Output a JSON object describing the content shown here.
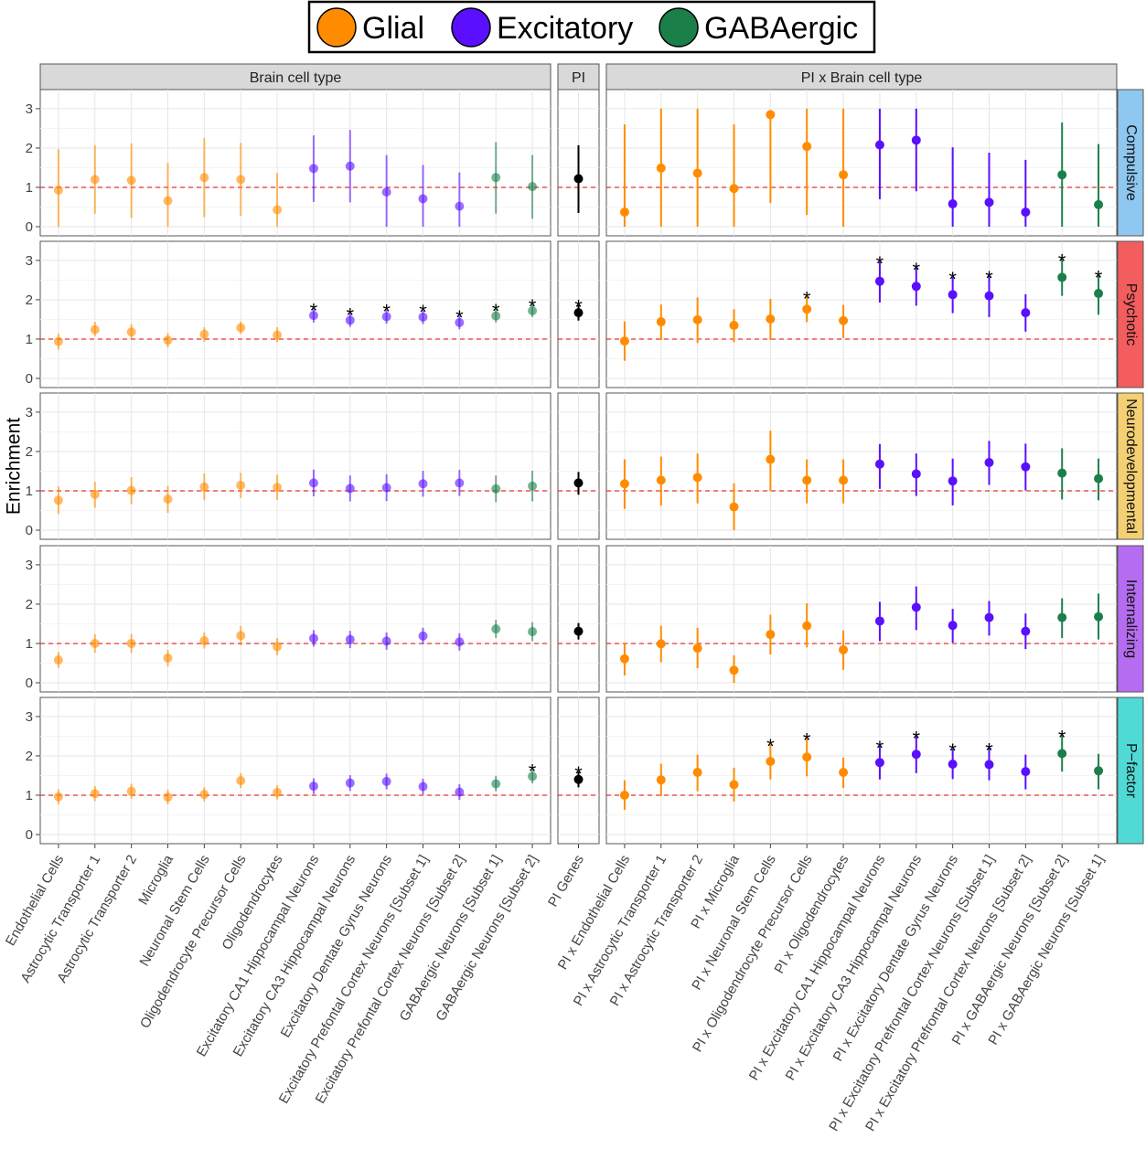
{
  "legend": {
    "items": [
      {
        "label": "Glial",
        "color": "#ff8c00"
      },
      {
        "label": "Excitatory",
        "color": "#5a0fff"
      },
      {
        "label": "GABAergic",
        "color": "#1b7f4a"
      }
    ]
  },
  "chart_data": {
    "type": "scatter",
    "ylabel": "Enrichment",
    "ylim": [
      0,
      3.3
    ],
    "yticks": [
      0,
      1,
      2,
      3
    ],
    "reference_line": 1,
    "grid": true,
    "column_facets": [
      {
        "label": "Brain cell type",
        "faded": true,
        "categories": [
          "Endothelial Cells",
          "Astrocytic Transporter 1",
          "Astrocytic Transporter 2",
          "Microglia",
          "Neuronal Stem Cells",
          "Oligodendrocyte Precursor Cells",
          "Oligodendrocytes",
          "Excitatory CA1 Hippocampal Neurons",
          "Excitatory CA3 Hippocampal Neurons",
          "Excitatory Dentate Gyrus Neurons",
          "Excitatory Prefontal Cortex Neurons [Subset 1]",
          "Excitatory Prefontal Cortex Neurons [Subset 2]",
          "GABAergic Neurons [Subset 1]",
          "GABAergic Neurons [Subset 2]"
        ],
        "groups": [
          "Glial",
          "Glial",
          "Glial",
          "Glial",
          "Glial",
          "Glial",
          "Glial",
          "Excitatory",
          "Excitatory",
          "Excitatory",
          "Excitatory",
          "Excitatory",
          "GABAergic",
          "GABAergic"
        ]
      },
      {
        "label": "PI",
        "faded": false,
        "categories": [
          "PI Genes"
        ],
        "groups": [
          "PI"
        ]
      },
      {
        "label": "PI x Brain cell type",
        "faded": false,
        "categories": [
          "PI x Endothelial Cells",
          "PI x Astrocytic Transporter 1",
          "PI x Astrocytic Transporter 2",
          "PI x Microglia",
          "PI x Neuronal Stem Cells",
          "PI x Oligodendrocyte Precursor Cells",
          "PI x Oligodendrocytes",
          "PI x Excitatory CA1 Hippocampal Neurons",
          "PI x Excitatory CA3 Hippocampal Neurons",
          "PI x Excitatory Dentate Gyrus Neurons",
          "PI x Excitatory Prefrontal Cortex Neurons [Subset 1]",
          "PI x Excitatory Prefrontal Cortex Neurons [Subset 2]",
          "PI x GABAergic Neurons [Subset 2]",
          "PI x GABAergic Neurons [Subset 1]"
        ],
        "groups": [
          "Glial",
          "Glial",
          "Glial",
          "Glial",
          "Glial",
          "Glial",
          "Glial",
          "Excitatory",
          "Excitatory",
          "Excitatory",
          "Excitatory",
          "Excitatory",
          "GABAergic",
          "GABAergic"
        ]
      }
    ],
    "row_facets": [
      {
        "label": "Compulsive",
        "color": "#8ec7f0"
      },
      {
        "label": "Psychotic",
        "color": "#f45d5d"
      },
      {
        "label": "Neurodevelopmental",
        "color": "#f5cf73"
      },
      {
        "label": "Internalizing",
        "color": "#b56cf0"
      },
      {
        "label": "P−factor",
        "color": "#4fdad6"
      }
    ],
    "panels": [
      [
        {
          "est": [
            0.93,
            1.2,
            1.18,
            0.66,
            1.25,
            1.2,
            0.43,
            1.48,
            1.54,
            0.88,
            0.71,
            0.52,
            1.25,
            1.02
          ],
          "lo": [
            0.0,
            0.33,
            0.22,
            0.0,
            0.24,
            0.28,
            0.0,
            0.63,
            0.62,
            0.0,
            0.0,
            0.0,
            0.33,
            0.2
          ],
          "hi": [
            1.97,
            2.07,
            2.12,
            1.62,
            2.25,
            2.13,
            1.37,
            2.32,
            2.46,
            1.82,
            1.57,
            1.38,
            2.15,
            1.82
          ],
          "sig": [
            false,
            false,
            false,
            false,
            false,
            false,
            false,
            false,
            false,
            false,
            false,
            false,
            false,
            false
          ]
        },
        {
          "est": [
            1.22
          ],
          "lo": [
            0.35
          ],
          "hi": [
            2.07
          ],
          "sig": [
            false
          ]
        },
        {
          "est": [
            0.37,
            1.49,
            1.36,
            0.97,
            2.85,
            2.04,
            1.32,
            2.08,
            2.2,
            0.58,
            0.62,
            0.37,
            1.32,
            0.56
          ],
          "lo": [
            0.0,
            0.0,
            0.0,
            0.0,
            0.6,
            0.3,
            0.0,
            0.7,
            0.9,
            0.0,
            0.0,
            0.0,
            0.0,
            0.0
          ],
          "hi": [
            2.6,
            3.0,
            3.0,
            2.6,
            2.95,
            3.0,
            3.0,
            3.0,
            3.0,
            2.02,
            1.88,
            1.7,
            2.65,
            2.1
          ],
          "sig": [
            false,
            false,
            false,
            false,
            false,
            false,
            false,
            false,
            false,
            false,
            false,
            false,
            false,
            false
          ]
        }
      ],
      [
        {
          "est": [
            0.94,
            1.24,
            1.18,
            0.97,
            1.12,
            1.29,
            1.1,
            1.6,
            1.48,
            1.57,
            1.56,
            1.42,
            1.59,
            1.72
          ],
          "lo": [
            0.73,
            1.07,
            1.0,
            0.79,
            0.93,
            1.13,
            0.92,
            1.42,
            1.31,
            1.39,
            1.38,
            1.25,
            1.42,
            1.56
          ],
          "hi": [
            1.14,
            1.44,
            1.38,
            1.15,
            1.3,
            1.45,
            1.3,
            1.78,
            1.66,
            1.75,
            1.74,
            1.6,
            1.77,
            1.88
          ],
          "sig": [
            false,
            false,
            false,
            false,
            false,
            false,
            false,
            true,
            true,
            true,
            true,
            true,
            true,
            true
          ]
        },
        {
          "est": [
            1.67
          ],
          "lo": [
            1.47
          ],
          "hi": [
            1.87
          ],
          "sig": [
            true
          ]
        },
        {
          "est": [
            0.95,
            1.44,
            1.49,
            1.35,
            1.51,
            1.76,
            1.47,
            2.47,
            2.34,
            2.13,
            2.1,
            1.67,
            2.57,
            2.16
          ],
          "lo": [
            0.45,
            0.98,
            0.9,
            0.92,
            0.98,
            1.43,
            1.03,
            1.93,
            1.85,
            1.66,
            1.56,
            1.19,
            2.1,
            1.62
          ],
          "hi": [
            1.45,
            1.88,
            2.06,
            1.76,
            2.02,
            2.08,
            1.87,
            2.97,
            2.81,
            2.58,
            2.6,
            2.14,
            3.03,
            2.62
          ],
          "sig": [
            false,
            false,
            false,
            false,
            false,
            true,
            false,
            true,
            true,
            true,
            true,
            false,
            true,
            true
          ]
        }
      ],
      [
        {
          "est": [
            0.76,
            0.91,
            1.01,
            0.79,
            1.1,
            1.14,
            1.09,
            1.2,
            1.06,
            1.08,
            1.18,
            1.2,
            1.05,
            1.12
          ],
          "lo": [
            0.41,
            0.57,
            0.66,
            0.44,
            0.76,
            0.82,
            0.77,
            0.86,
            0.73,
            0.74,
            0.85,
            0.87,
            0.71,
            0.73
          ],
          "hi": [
            1.11,
            1.23,
            1.35,
            1.12,
            1.44,
            1.46,
            1.41,
            1.54,
            1.39,
            1.42,
            1.51,
            1.53,
            1.39,
            1.51
          ],
          "sig": [
            false,
            false,
            false,
            false,
            false,
            false,
            false,
            false,
            false,
            false,
            false,
            false,
            false,
            false
          ]
        },
        {
          "est": [
            1.2
          ],
          "lo": [
            0.9
          ],
          "hi": [
            1.48
          ],
          "sig": [
            false
          ]
        },
        {
          "est": [
            1.18,
            1.27,
            1.34,
            0.59,
            1.8,
            1.27,
            1.27,
            1.68,
            1.43,
            1.25,
            1.72,
            1.61,
            1.45,
            1.31
          ],
          "lo": [
            0.54,
            0.62,
            0.68,
            0.0,
            1.0,
            0.68,
            0.68,
            1.05,
            0.87,
            0.63,
            1.15,
            1.01,
            0.78,
            0.76
          ],
          "hi": [
            1.8,
            1.87,
            1.95,
            1.19,
            2.53,
            1.8,
            1.8,
            2.19,
            1.95,
            1.82,
            2.27,
            2.2,
            2.08,
            1.82
          ],
          "sig": [
            false,
            false,
            false,
            false,
            false,
            false,
            false,
            false,
            false,
            false,
            false,
            false,
            false,
            false
          ]
        }
      ],
      [
        {
          "est": [
            0.58,
            1.0,
            1.0,
            0.63,
            1.07,
            1.2,
            0.92,
            1.13,
            1.1,
            1.06,
            1.19,
            1.04,
            1.37,
            1.3
          ],
          "lo": [
            0.38,
            0.76,
            0.76,
            0.42,
            0.87,
            0.95,
            0.7,
            0.92,
            0.88,
            0.84,
            0.98,
            0.82,
            1.14,
            1.06
          ],
          "hi": [
            0.78,
            1.24,
            1.24,
            0.84,
            1.28,
            1.45,
            1.14,
            1.34,
            1.32,
            1.28,
            1.4,
            1.26,
            1.6,
            1.54
          ],
          "sig": [
            false,
            false,
            false,
            false,
            false,
            false,
            false,
            false,
            false,
            false,
            false,
            false,
            false,
            false
          ]
        },
        {
          "est": [
            1.31
          ],
          "lo": [
            1.1
          ],
          "hi": [
            1.52
          ],
          "sig": [
            false
          ]
        },
        {
          "est": [
            0.61,
            0.99,
            0.88,
            0.32,
            1.23,
            1.45,
            0.84,
            1.57,
            1.92,
            1.46,
            1.66,
            1.31,
            1.66,
            1.68
          ],
          "lo": [
            0.19,
            0.52,
            0.37,
            0.0,
            0.72,
            0.9,
            0.33,
            1.06,
            1.34,
            1.02,
            1.2,
            0.86,
            1.14,
            1.1
          ],
          "hi": [
            1.0,
            1.45,
            1.4,
            0.7,
            1.73,
            2.02,
            1.33,
            2.06,
            2.45,
            1.88,
            2.08,
            1.76,
            2.15,
            2.27
          ],
          "sig": [
            false,
            false,
            false,
            false,
            false,
            false,
            false,
            false,
            false,
            false,
            false,
            false,
            false,
            false
          ]
        }
      ],
      [
        {
          "est": [
            0.96,
            1.04,
            1.1,
            0.95,
            1.02,
            1.37,
            1.07,
            1.23,
            1.31,
            1.35,
            1.22,
            1.08,
            1.29,
            1.48
          ],
          "lo": [
            0.77,
            0.85,
            0.91,
            0.77,
            0.84,
            1.18,
            0.89,
            1.03,
            1.11,
            1.15,
            1.02,
            0.88,
            1.1,
            1.3
          ],
          "hi": [
            1.15,
            1.23,
            1.29,
            1.14,
            1.2,
            1.56,
            1.25,
            1.43,
            1.51,
            1.55,
            1.42,
            1.28,
            1.49,
            1.66
          ],
          "sig": [
            false,
            false,
            false,
            false,
            false,
            false,
            false,
            false,
            false,
            false,
            false,
            false,
            false,
            true
          ]
        },
        {
          "est": [
            1.4
          ],
          "lo": [
            1.2
          ],
          "hi": [
            1.6
          ],
          "sig": [
            true
          ]
        },
        {
          "est": [
            1.0,
            1.39,
            1.58,
            1.27,
            1.86,
            1.97,
            1.58,
            1.83,
            2.04,
            1.79,
            1.78,
            1.6,
            2.06,
            1.62
          ],
          "lo": [
            0.63,
            0.98,
            1.1,
            0.84,
            1.4,
            1.48,
            1.18,
            1.4,
            1.56,
            1.41,
            1.38,
            1.15,
            1.6,
            1.15
          ],
          "hi": [
            1.38,
            1.8,
            2.03,
            1.7,
            2.3,
            2.45,
            1.96,
            2.26,
            2.5,
            2.18,
            2.2,
            2.03,
            2.52,
            2.05
          ],
          "sig": [
            false,
            false,
            false,
            false,
            true,
            true,
            false,
            true,
            true,
            true,
            true,
            false,
            true,
            false
          ]
        }
      ]
    ],
    "significance_marker": "*"
  }
}
